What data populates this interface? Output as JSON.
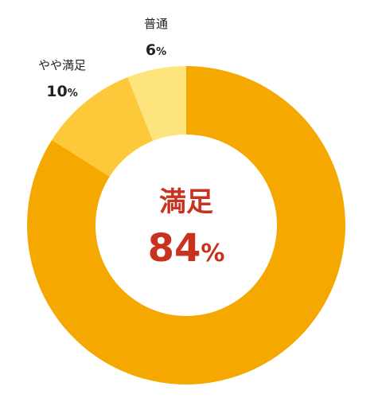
{
  "chart_data": {
    "type": "pie",
    "donut": true,
    "categories": [
      "満足",
      "やや満足",
      "普通"
    ],
    "values": [
      84,
      10,
      6
    ],
    "unit": "%",
    "colors": [
      "#f5a800",
      "#fdc93a",
      "#fee47c"
    ],
    "center_label": {
      "name": "満足",
      "value": "84",
      "unit": "%"
    },
    "outer_labels": [
      {
        "name": "やや満足",
        "value": "10",
        "unit": "%"
      },
      {
        "name": "普通",
        "value": "6",
        "unit": "%"
      }
    ],
    "title": "",
    "legend": "none"
  }
}
